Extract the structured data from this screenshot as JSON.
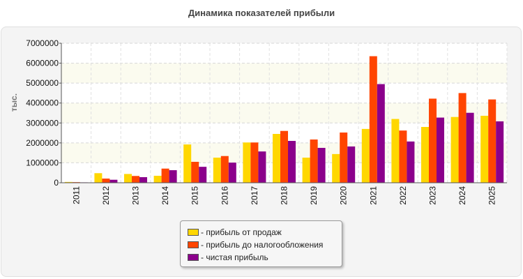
{
  "title": "Динамика показателей прибыли",
  "chart_data": {
    "type": "bar",
    "title": "Динамика показателей прибыли",
    "xlabel": "",
    "ylabel": "тыс.",
    "ylim": [
      0,
      7000000
    ],
    "yticks": [
      0,
      1000000,
      2000000,
      3000000,
      4000000,
      5000000,
      6000000,
      7000000
    ],
    "grid": true,
    "legend_position": "bottom-center",
    "categories": [
      "2011",
      "2012",
      "2013",
      "2014",
      "2015",
      "2016",
      "2017",
      "2018",
      "2019",
      "2020",
      "2021",
      "2022",
      "2023",
      "2024",
      "2025"
    ],
    "series": [
      {
        "name": "- прибыль от продаж",
        "color": "#ffd700",
        "values": [
          40000,
          480000,
          440000,
          350000,
          1920000,
          1260000,
          2020000,
          2450000,
          1260000,
          1440000,
          2700000,
          3200000,
          2800000,
          3300000,
          3360000
        ]
      },
      {
        "name": "- прибыль до налогообложения",
        "color": "#ff4500",
        "values": [
          30000,
          210000,
          340000,
          710000,
          1050000,
          1340000,
          2020000,
          2600000,
          2170000,
          2520000,
          6350000,
          2620000,
          4220000,
          4500000,
          4180000
        ]
      },
      {
        "name": "- чистая прибыль",
        "color": "#8b008b",
        "values": [
          20000,
          150000,
          280000,
          630000,
          800000,
          1010000,
          1570000,
          2100000,
          1750000,
          1820000,
          4950000,
          2070000,
          3270000,
          3510000,
          3080000
        ]
      }
    ]
  }
}
